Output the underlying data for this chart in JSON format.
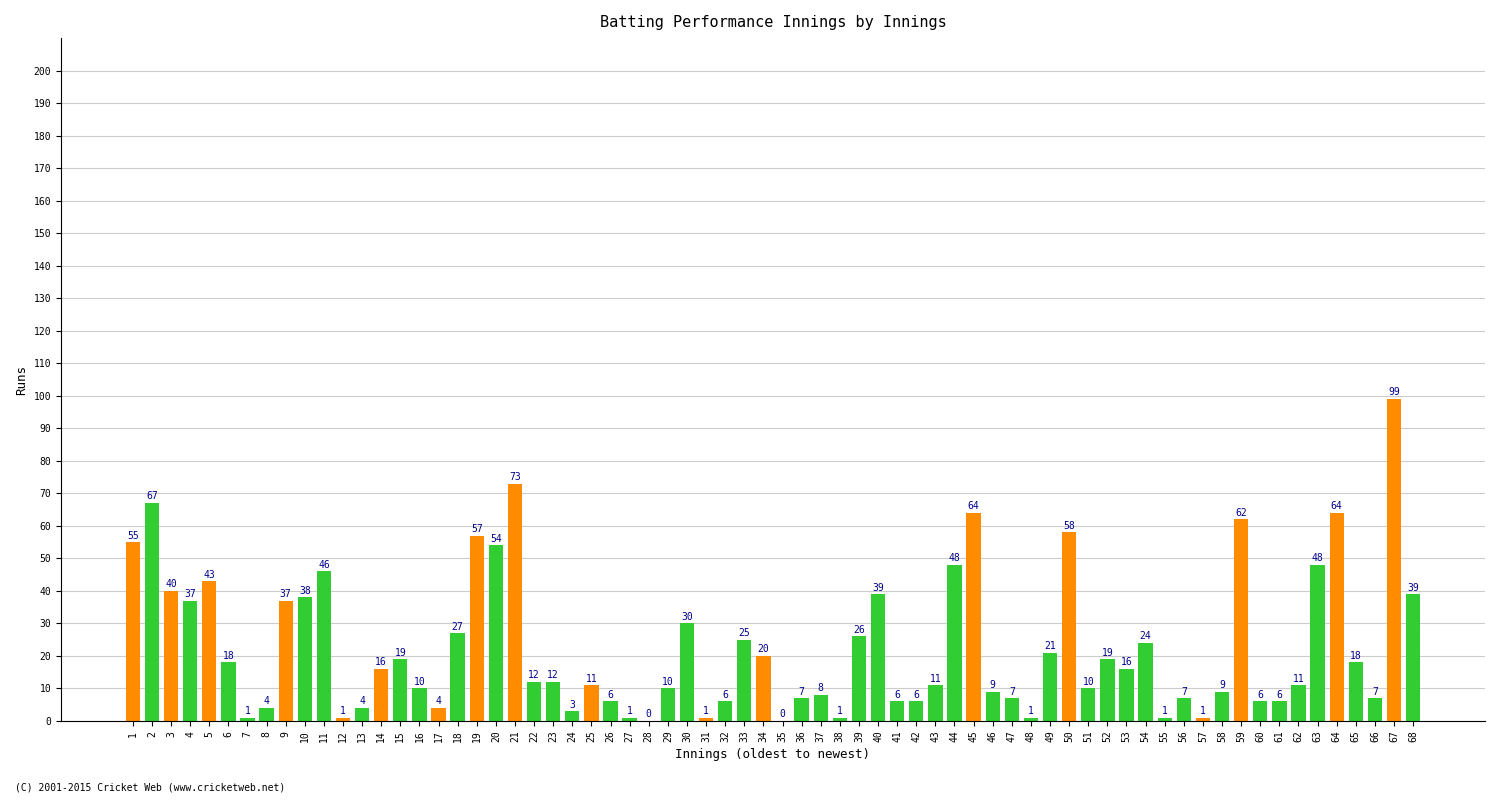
{
  "title": "Batting Performance Innings by Innings",
  "xlabel": "Innings (oldest to newest)",
  "ylabel": "Runs",
  "ylim": [
    0,
    210
  ],
  "yticks": [
    0,
    10,
    20,
    30,
    40,
    50,
    60,
    70,
    80,
    90,
    100,
    110,
    120,
    130,
    140,
    150,
    160,
    170,
    180,
    190,
    200
  ],
  "background_color": "#ffffff",
  "innings": [
    1,
    2,
    3,
    4,
    5,
    6,
    7,
    8,
    9,
    10,
    11,
    12,
    13,
    14,
    15,
    16,
    17,
    18,
    19,
    20,
    21,
    22,
    23,
    24,
    25,
    26,
    27,
    28,
    29,
    30,
    31,
    32,
    33,
    34,
    35,
    36,
    37,
    38,
    39,
    40,
    41,
    42,
    43,
    44,
    45,
    46,
    47,
    48,
    49,
    50,
    51,
    52,
    53,
    54,
    55,
    56,
    57,
    58,
    59,
    60,
    61,
    62,
    63,
    64,
    65,
    66,
    67,
    68
  ],
  "values": [
    55,
    67,
    40,
    37,
    43,
    18,
    1,
    4,
    37,
    38,
    46,
    1,
    4,
    16,
    19,
    10,
    4,
    27,
    57,
    54,
    73,
    12,
    12,
    3,
    11,
    6,
    1,
    0,
    10,
    30,
    1,
    6,
    25,
    20,
    0,
    7,
    8,
    1,
    26,
    39,
    6,
    6,
    11,
    48,
    64,
    9,
    7,
    1,
    21,
    58,
    10,
    19,
    16,
    24,
    1,
    7,
    1,
    9,
    62,
    6,
    6,
    11,
    48,
    64,
    18,
    7,
    99,
    39
  ],
  "colors": [
    "#ff8c00",
    "#32cd32",
    "#ff8c00",
    "#32cd32",
    "#ff8c00",
    "#32cd32",
    "#32cd32",
    "#32cd32",
    "#ff8c00",
    "#32cd32",
    "#32cd32",
    "#ff8c00",
    "#32cd32",
    "#ff8c00",
    "#32cd32",
    "#32cd32",
    "#ff8c00",
    "#32cd32",
    "#ff8c00",
    "#32cd32",
    "#ff8c00",
    "#32cd32",
    "#32cd32",
    "#32cd32",
    "#ff8c00",
    "#32cd32",
    "#32cd32",
    "#ff8c00",
    "#32cd32",
    "#32cd32",
    "#ff8c00",
    "#32cd32",
    "#32cd32",
    "#ff8c00",
    "#32cd32",
    "#32cd32",
    "#32cd32",
    "#32cd32",
    "#32cd32",
    "#32cd32",
    "#32cd32",
    "#32cd32",
    "#32cd32",
    "#32cd32",
    "#ff8c00",
    "#32cd32",
    "#32cd32",
    "#32cd32",
    "#32cd32",
    "#ff8c00",
    "#32cd32",
    "#32cd32",
    "#32cd32",
    "#32cd32",
    "#32cd32",
    "#32cd32",
    "#ff8c00",
    "#32cd32",
    "#ff8c00",
    "#32cd32",
    "#32cd32",
    "#32cd32",
    "#32cd32",
    "#ff8c00",
    "#32cd32",
    "#32cd32",
    "#ff8c00",
    "#32cd32"
  ],
  "label_color": "#00008b",
  "label_fontsize": 7,
  "tick_fontsize": 7,
  "axis_label_fontsize": 9,
  "grid_color": "#cccccc",
  "footer": "(C) 2001-2015 Cricket Web (www.cricketweb.net)"
}
